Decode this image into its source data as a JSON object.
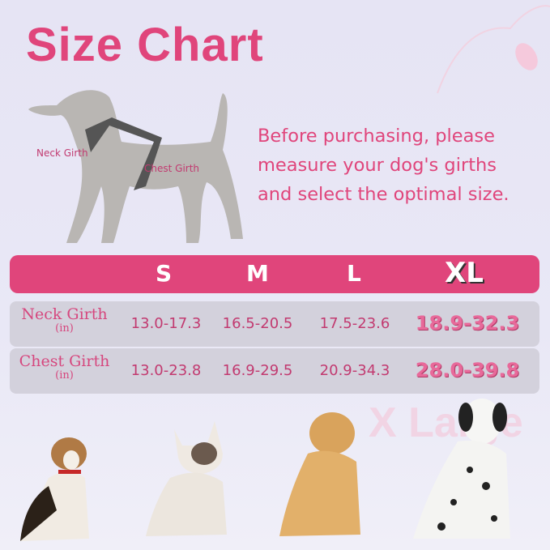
{
  "title": "Size Chart",
  "intro": "Before purchasing, please measure your dog's girths and select the optimal size.",
  "diagram": {
    "neck_label": "Neck Girth",
    "chest_label": "Chest Girth"
  },
  "sizes": [
    "S",
    "M",
    "L",
    "XL"
  ],
  "rows": [
    {
      "label": "Neck Girth",
      "unit": "(in)",
      "values": [
        "13.0-17.3",
        "16.5-20.5",
        "17.5-23.6",
        "18.9-32.3"
      ]
    },
    {
      "label": "Chest Girth",
      "unit": "(in)",
      "values": [
        "13.0-23.8",
        "16.9-29.5",
        "20.9-34.3",
        "28.0-39.8"
      ]
    }
  ],
  "watermark": "X Large",
  "colors": {
    "accent": "#e0457b",
    "background": "#e6e4f4",
    "row": "#d3d1dc"
  }
}
